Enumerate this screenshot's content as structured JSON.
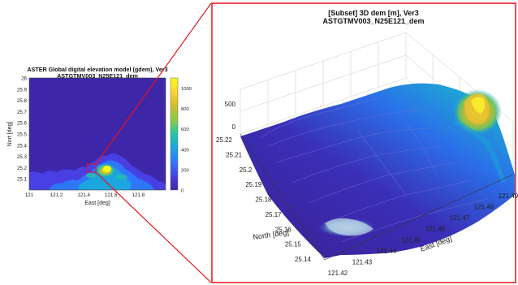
{
  "chart_data": [
    {
      "type": "heatmap",
      "title": "ASTER Global digital elevation model (gdem), Ver3",
      "subtitle": "ASTGTMV003_N25E121_dem",
      "xlabel": "East [deg]",
      "ylabel": "Nort [deg]",
      "xlim": [
        121,
        122
      ],
      "ylim": [
        25,
        26
      ],
      "x_ticks": [
        "121",
        "121.2",
        "121.4",
        "121.6",
        "121.8"
      ],
      "y_ticks": [
        "26",
        "25.9",
        "25.8",
        "25.7",
        "25.6",
        "25.5",
        "25.4",
        "25.3",
        "25.2",
        "25.1"
      ],
      "colorbar": {
        "min": 0,
        "max": 1100,
        "ticks": [
          "1000",
          "800",
          "600",
          "400",
          "200",
          "0"
        ]
      },
      "colormap": [
        "#3e26a8",
        "#4840e3",
        "#2f77fa",
        "#1ba6df",
        "#26c5a0",
        "#84cc4d",
        "#d4bb2f",
        "#fdd630",
        "#f9fb15"
      ],
      "subset_box": {
        "x": [
          121.42,
          121.5
        ],
        "y": [
          25.14,
          25.22
        ]
      }
    },
    {
      "type": "surface",
      "title": "[Subset] 3D dem [m], Ver3",
      "subtitle": "ASTGTMV003_N25E121_dem",
      "xlabel": "East [deg]",
      "ylabel": "North [deg]",
      "zlabel": "",
      "xlim": [
        121.42,
        121.5
      ],
      "ylim": [
        25.14,
        25.22
      ],
      "z_ticks": [
        "500",
        "0"
      ],
      "north_ticks": [
        "25.22",
        "25.21",
        "25.2",
        "25.19",
        "25.18",
        "25.17",
        "25.16",
        "25.15",
        "25.14"
      ],
      "east_ticks": [
        "121.42",
        "121.43",
        "121.44",
        "121.45",
        "121.46",
        "121.47",
        "121.48",
        "121.49"
      ],
      "peak_value": 800,
      "grid": true
    }
  ],
  "colors": {
    "frame": "#e8141b",
    "low": "#3e26a8",
    "mid": "#1ba6df",
    "high": "#f9fb15"
  }
}
